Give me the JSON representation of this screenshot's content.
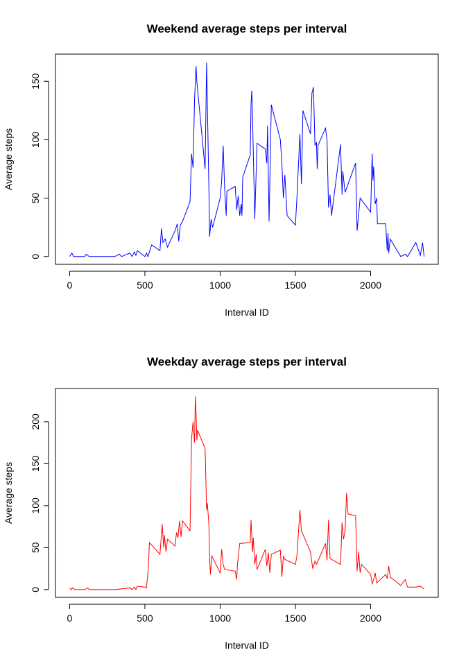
{
  "chart_data": [
    {
      "type": "line",
      "title": "Weekend average steps per interval",
      "x_label": "Interval ID",
      "y_label": "Average steps",
      "x": [
        0,
        15,
        25,
        100,
        110,
        130,
        300,
        330,
        345,
        400,
        415,
        430,
        440,
        450,
        500,
        510,
        520,
        530,
        545,
        600,
        610,
        620,
        635,
        650,
        700,
        715,
        725,
        735,
        750,
        800,
        810,
        820,
        830,
        840,
        845,
        900,
        910,
        925,
        930,
        940,
        950,
        1000,
        1010,
        1020,
        1030,
        1040,
        1045,
        1100,
        1110,
        1120,
        1130,
        1140,
        1145,
        1150,
        1200,
        1205,
        1210,
        1215,
        1230,
        1245,
        1300,
        1310,
        1315,
        1325,
        1340,
        1400,
        1410,
        1420,
        1430,
        1445,
        1500,
        1510,
        1530,
        1540,
        1550,
        1600,
        1610,
        1620,
        1630,
        1640,
        1645,
        1650,
        1700,
        1710,
        1720,
        1730,
        1740,
        1800,
        1810,
        1815,
        1830,
        1900,
        1910,
        1930,
        2000,
        2010,
        2015,
        2020,
        2030,
        2040,
        2045,
        2100,
        2110,
        2115,
        2120,
        2130,
        2200,
        2230,
        2245,
        2300,
        2330,
        2345,
        2355
      ],
      "series": [
        {
          "name": "Weekend",
          "color": "#0000ff",
          "values": [
            0,
            3,
            0,
            0,
            2,
            0,
            0,
            2,
            0,
            3,
            0,
            4,
            1,
            5,
            0,
            3,
            0,
            4,
            10,
            5,
            24,
            12,
            15,
            8,
            22,
            28,
            13,
            27,
            30,
            47,
            88,
            76,
            135,
            163,
            150,
            75,
            166,
            60,
            17,
            32,
            25,
            50,
            65,
            95,
            58,
            35,
            56,
            60,
            40,
            52,
            35,
            45,
            35,
            68,
            87,
            130,
            142,
            120,
            32,
            97,
            92,
            80,
            112,
            30,
            130,
            100,
            80,
            50,
            70,
            35,
            27,
            50,
            105,
            62,
            125,
            105,
            140,
            145,
            95,
            98,
            75,
            95,
            110,
            100,
            42,
            53,
            35,
            96,
            53,
            73,
            55,
            80,
            22,
            50,
            38,
            88,
            65,
            77,
            45,
            50,
            28,
            28,
            5,
            20,
            3,
            15,
            0,
            2,
            0,
            12,
            1,
            12,
            0
          ]
        }
      ],
      "xlim": [
        -94.2,
        2449.2
      ],
      "ylim": [
        -6.66,
        173.3
      ],
      "xticks": [
        0,
        500,
        1000,
        1500,
        2000
      ],
      "yticks": [
        0,
        50,
        100,
        150
      ]
    },
    {
      "type": "line",
      "title": "Weekday average steps per interval",
      "x_label": "Interval ID",
      "y_label": "Average steps",
      "x": [
        0,
        10,
        20,
        35,
        100,
        120,
        130,
        300,
        400,
        415,
        430,
        440,
        450,
        500,
        510,
        520,
        525,
        530,
        600,
        615,
        625,
        630,
        640,
        650,
        700,
        710,
        720,
        730,
        740,
        750,
        800,
        810,
        820,
        830,
        835,
        840,
        845,
        850,
        900,
        910,
        915,
        925,
        930,
        935,
        945,
        1000,
        1010,
        1020,
        1030,
        1100,
        1110,
        1115,
        1130,
        1200,
        1205,
        1215,
        1220,
        1230,
        1240,
        1245,
        1300,
        1310,
        1320,
        1330,
        1340,
        1400,
        1410,
        1420,
        1430,
        1500,
        1510,
        1530,
        1540,
        1600,
        1615,
        1630,
        1640,
        1700,
        1710,
        1720,
        1730,
        1800,
        1810,
        1820,
        1830,
        1840,
        1850,
        1900,
        1910,
        1920,
        1930,
        1940,
        2000,
        2010,
        2020,
        2030,
        2040,
        2100,
        2110,
        2120,
        2130,
        2200,
        2230,
        2245,
        2300,
        2330,
        2345,
        2355
      ],
      "series": [
        {
          "name": "Weekday",
          "color": "#ff0000",
          "values": [
            2,
            0,
            2,
            0,
            0,
            2,
            0,
            0,
            2,
            0,
            3,
            0,
            4,
            3,
            2,
            20,
            35,
            56,
            42,
            78,
            50,
            65,
            45,
            60,
            52,
            68,
            62,
            82,
            63,
            82,
            70,
            180,
            200,
            175,
            230,
            210,
            178,
            190,
            168,
            95,
            103,
            78,
            40,
            18,
            40,
            20,
            48,
            30,
            24,
            22,
            12,
            30,
            55,
            56,
            83,
            45,
            62,
            30,
            42,
            24,
            48,
            28,
            44,
            20,
            42,
            47,
            15,
            40,
            36,
            30,
            40,
            95,
            70,
            45,
            25,
            34,
            30,
            55,
            35,
            83,
            37,
            30,
            80,
            60,
            70,
            115,
            90,
            88,
            22,
            45,
            20,
            30,
            18,
            7,
            12,
            20,
            8,
            18,
            13,
            28,
            15,
            5,
            12,
            3,
            3,
            4,
            2,
            1
          ]
        }
      ],
      "xlim": [
        -94.2,
        2449.2
      ],
      "ylim": [
        -9.2,
        239.6
      ],
      "xticks": [
        0,
        500,
        1000,
        1500,
        2000
      ],
      "yticks": [
        0,
        50,
        100,
        150,
        200
      ]
    }
  ]
}
